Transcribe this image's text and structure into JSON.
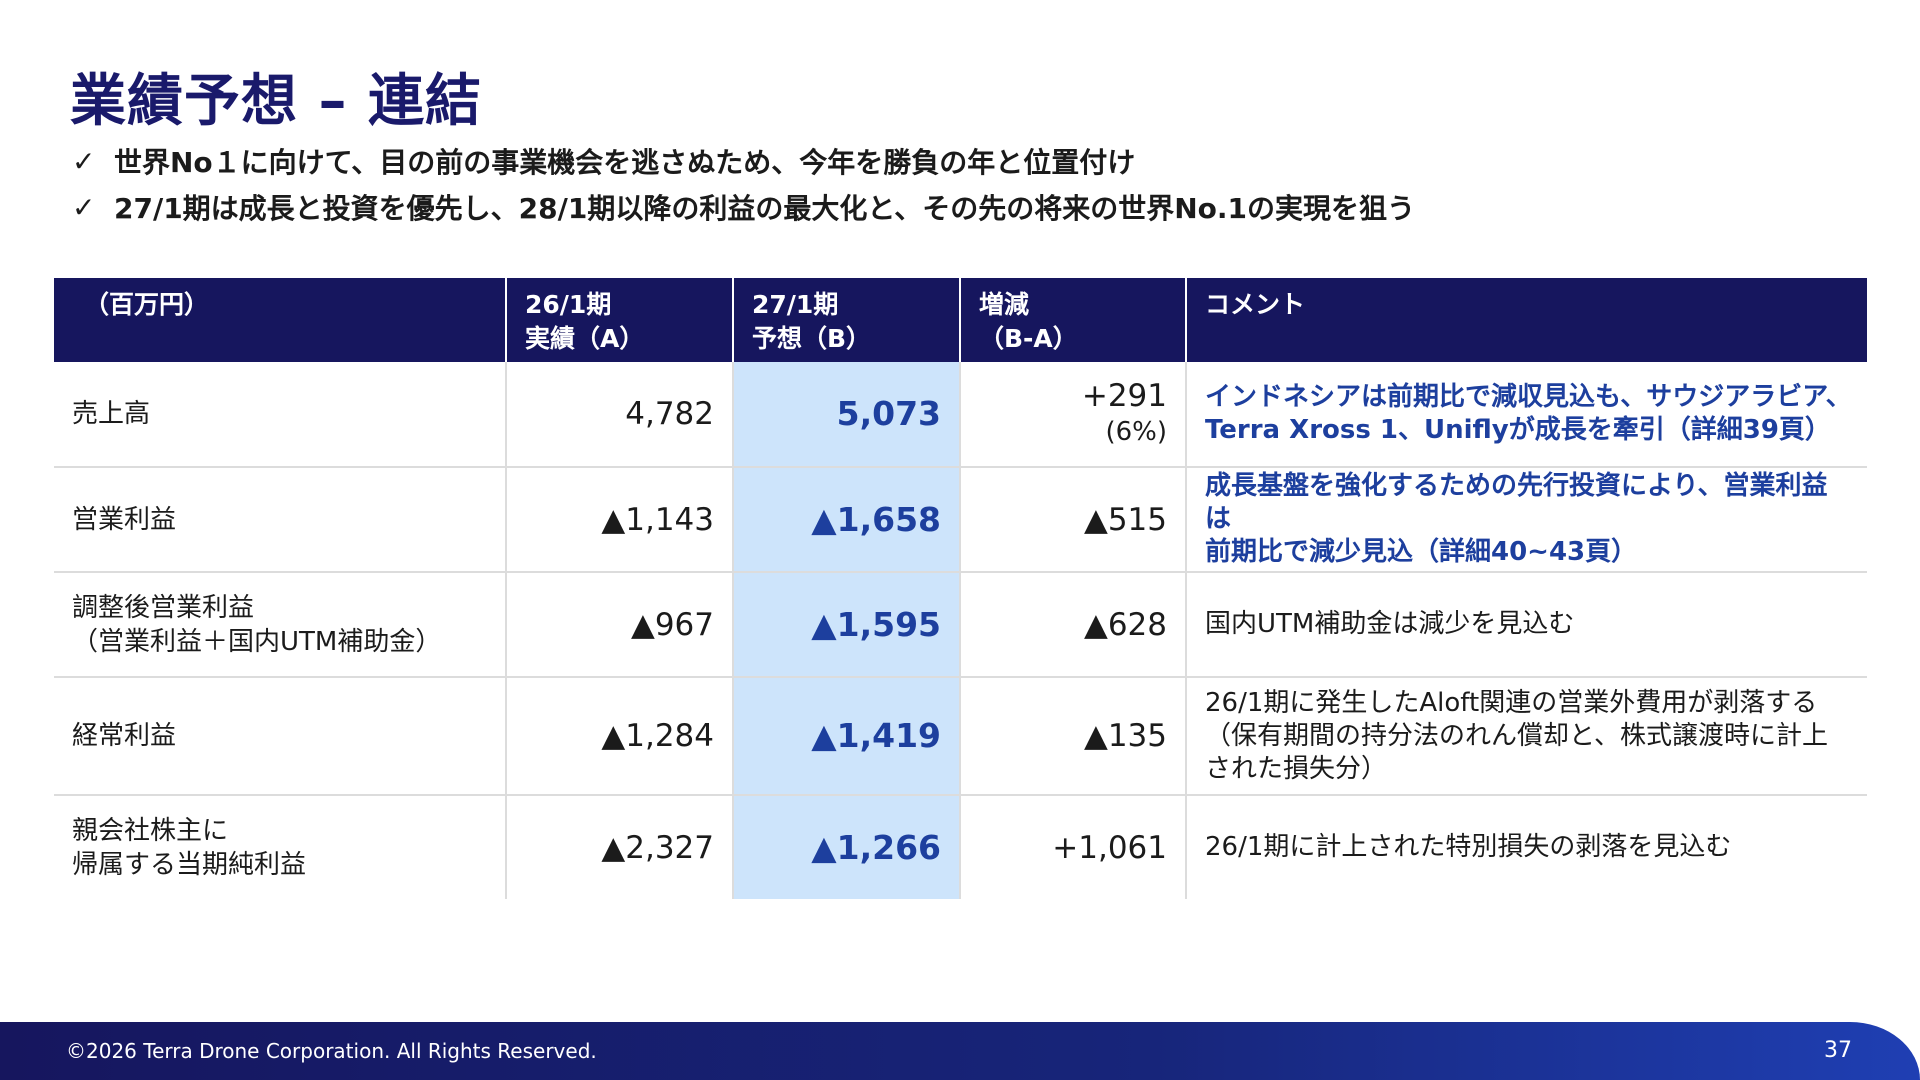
{
  "title": "業績予想 – 連結",
  "bullets": [
    "世界No１に向けて、目の前の事業機会を逃さぬため、今年を勝負の年と位置付け",
    "27/1期は成長と投資を優先し、28/1期以降の利益の最大化と、その先の将来の世界No.1の実現を狙う"
  ],
  "icons": {
    "bullet": "check-icon"
  },
  "colors": {
    "title": "#1a1a6b",
    "header_bg": "#16165e",
    "highlight_bg": "#cde4fb",
    "highlight_text": "#1d3f9e"
  },
  "table": {
    "headers": {
      "unit": "（百万円）",
      "actual_l1": "26/1期",
      "actual_l2": "実績（A）",
      "forecast_l1": "27/1期",
      "forecast_l2": "予想（B）",
      "diff_l1": "増減",
      "diff_l2": "（B-A）",
      "comment": "コメント"
    },
    "rows": [
      {
        "label_l1": "売上高",
        "label_l2": "",
        "actual": "4,782",
        "forecast": "5,073",
        "diff": "+291",
        "diff_pct": "(6%)",
        "comment_l1": "インドネシアは前期比で減収見込も、サウジアラビア、",
        "comment_l2": "Terra Xross 1、Uniflyが成長を牽引（詳細39頁）",
        "comment_l3": ""
      },
      {
        "label_l1": "営業利益",
        "label_l2": "",
        "actual": "▲1,143",
        "forecast": "▲1,658",
        "diff": "▲515",
        "diff_pct": "",
        "comment_l1": "成長基盤を強化するための先行投資により、営業利益は",
        "comment_l2": "前期比で減少見込（詳細40~43頁）",
        "comment_l3": ""
      },
      {
        "label_l1": "調整後営業利益",
        "label_l2": "（営業利益＋国内UTM補助金）",
        "actual": "▲967",
        "forecast": "▲1,595",
        "diff": "▲628",
        "diff_pct": "",
        "comment_l1": "国内UTM補助金は減少を見込む",
        "comment_l2": "",
        "comment_l3": ""
      },
      {
        "label_l1": "経常利益",
        "label_l2": "",
        "actual": "▲1,284",
        "forecast": "▲1,419",
        "diff": "▲135",
        "diff_pct": "",
        "comment_l1": "26/1期に発生したAloft関連の営業外費用が剥落する",
        "comment_l2": "（保有期間の持分法のれん償却と、株式譲渡時に計上",
        "comment_l3": "された損失分）"
      },
      {
        "label_l1": "親会社株主に",
        "label_l2": "帰属する当期純利益",
        "actual": "▲2,327",
        "forecast": "▲1,266",
        "diff": "+1,061",
        "diff_pct": "",
        "comment_l1": "26/1期に計上された特別損失の剥落を見込む",
        "comment_l2": "",
        "comment_l3": ""
      }
    ]
  },
  "footer": {
    "copyright": "©2026 Terra Drone Corporation. All Rights Reserved.",
    "page": "37"
  }
}
